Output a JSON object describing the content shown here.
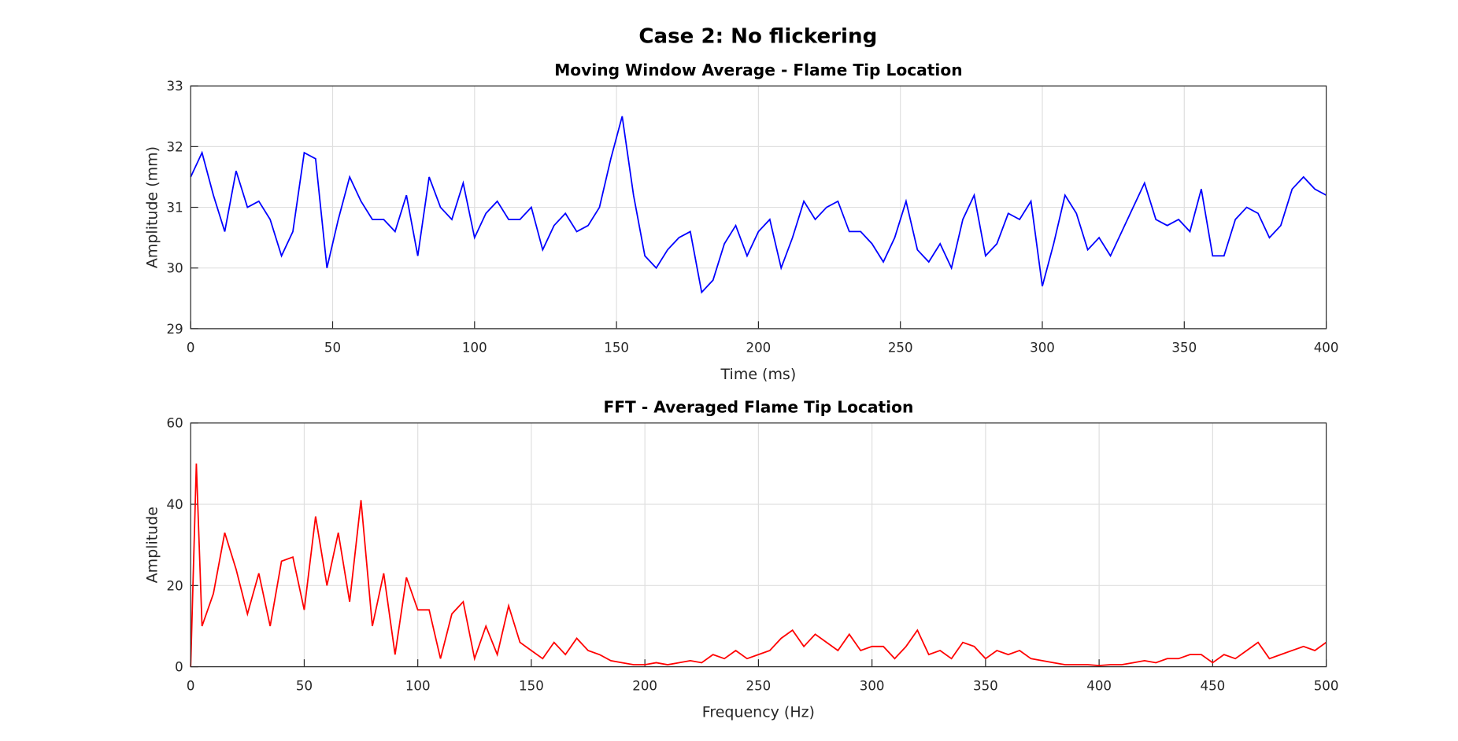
{
  "title": "Case 2: No flickering",
  "chart_data": [
    {
      "type": "line",
      "title": "Moving Window Average - Flame Tip Location",
      "xlabel": "Time (ms)",
      "ylabel": "Amplitude (mm)",
      "grid": true,
      "xlim": [
        0,
        400
      ],
      "xticks": [
        0,
        50,
        100,
        150,
        200,
        250,
        300,
        350,
        400
      ],
      "ylim": [
        29,
        33
      ],
      "yticks": [
        29,
        30,
        31,
        32,
        33
      ],
      "series": [
        {
          "color": "#0000ff",
          "x": [
            0,
            4,
            8,
            12,
            16,
            20,
            24,
            28,
            32,
            36,
            40,
            44,
            48,
            52,
            56,
            60,
            64,
            68,
            72,
            76,
            80,
            84,
            88,
            92,
            96,
            100,
            104,
            108,
            112,
            116,
            120,
            124,
            128,
            132,
            136,
            140,
            144,
            148,
            152,
            156,
            160,
            164,
            168,
            172,
            176,
            180,
            184,
            188,
            192,
            196,
            200,
            204,
            208,
            212,
            216,
            220,
            224,
            228,
            232,
            236,
            240,
            244,
            248,
            252,
            256,
            260,
            264,
            268,
            272,
            276,
            280,
            284,
            288,
            292,
            296,
            300,
            304,
            308,
            312,
            316,
            320,
            324,
            328,
            332,
            336,
            340,
            344,
            348,
            352,
            356,
            360,
            364,
            368,
            372,
            376,
            380,
            384,
            388,
            392,
            396,
            400
          ],
          "values": [
            31.5,
            31.9,
            31.2,
            30.6,
            31.6,
            31.0,
            31.1,
            30.8,
            30.2,
            30.6,
            31.9,
            31.8,
            30.0,
            30.8,
            31.5,
            31.1,
            30.8,
            30.8,
            30.6,
            31.2,
            30.2,
            31.5,
            31.0,
            30.8,
            31.4,
            30.5,
            30.9,
            31.1,
            30.8,
            30.8,
            31.0,
            30.3,
            30.7,
            30.9,
            30.6,
            30.7,
            31.0,
            31.8,
            32.5,
            31.2,
            30.2,
            30.0,
            30.3,
            30.5,
            30.6,
            29.6,
            29.8,
            30.4,
            30.7,
            30.2,
            30.6,
            30.8,
            30.0,
            30.5,
            31.1,
            30.8,
            31.0,
            31.1,
            30.6,
            30.6,
            30.4,
            30.1,
            30.5,
            31.1,
            30.3,
            30.1,
            30.4,
            30.0,
            30.8,
            31.2,
            30.2,
            30.4,
            30.9,
            30.8,
            31.1,
            29.7,
            30.4,
            31.2,
            30.9,
            30.3,
            30.5,
            30.2,
            30.6,
            31.0,
            31.4,
            30.8,
            30.7,
            30.8,
            30.6,
            31.3,
            30.2,
            30.2,
            30.8,
            31.0,
            30.9,
            30.5,
            30.7,
            31.3,
            31.5,
            31.3,
            31.2
          ]
        }
      ]
    },
    {
      "type": "line",
      "title": "FFT - Averaged Flame Tip Location",
      "xlabel": "Frequency (Hz)",
      "ylabel": "Amplitude",
      "grid": true,
      "xlim": [
        0,
        500
      ],
      "xticks": [
        0,
        50,
        100,
        150,
        200,
        250,
        300,
        350,
        400,
        450,
        500
      ],
      "ylim": [
        0,
        60
      ],
      "yticks": [
        0,
        20,
        40,
        60
      ],
      "series": [
        {
          "color": "#ff0000",
          "x": [
            0,
            2.5,
            5,
            10,
            15,
            20,
            25,
            30,
            35,
            40,
            45,
            50,
            55,
            60,
            65,
            70,
            75,
            80,
            85,
            90,
            95,
            100,
            105,
            110,
            115,
            120,
            125,
            130,
            135,
            140,
            145,
            150,
            155,
            160,
            165,
            170,
            175,
            180,
            185,
            190,
            195,
            200,
            205,
            210,
            215,
            220,
            225,
            230,
            235,
            240,
            245,
            250,
            255,
            260,
            265,
            270,
            275,
            280,
            285,
            290,
            295,
            300,
            305,
            310,
            315,
            320,
            325,
            330,
            335,
            340,
            345,
            350,
            355,
            360,
            365,
            370,
            375,
            380,
            385,
            390,
            395,
            400,
            405,
            410,
            415,
            420,
            425,
            430,
            435,
            440,
            445,
            450,
            455,
            460,
            465,
            470,
            475,
            480,
            485,
            490,
            495,
            500
          ],
          "values": [
            0,
            50,
            10,
            18,
            33,
            24,
            13,
            23,
            10,
            26,
            27,
            14,
            37,
            20,
            33,
            16,
            41,
            10,
            23,
            3,
            22,
            14,
            14,
            2,
            13,
            16,
            2,
            10,
            3,
            15,
            6,
            4,
            2,
            6,
            3,
            7,
            4,
            3,
            1.5,
            1,
            0.5,
            0.5,
            1,
            0.5,
            1,
            1.5,
            1,
            3,
            2,
            4,
            2,
            3,
            4,
            7,
            9,
            5,
            8,
            6,
            4,
            8,
            4,
            5,
            5,
            2,
            5,
            9,
            3,
            4,
            2,
            6,
            5,
            2,
            4,
            3,
            4,
            2,
            1.5,
            1,
            0.5,
            0.5,
            0.5,
            0.3,
            0.5,
            0.5,
            1,
            1.5,
            1,
            2,
            2,
            3,
            3,
            1,
            3,
            2,
            4,
            6,
            2,
            3,
            4,
            5,
            4,
            6
          ]
        }
      ]
    }
  ]
}
